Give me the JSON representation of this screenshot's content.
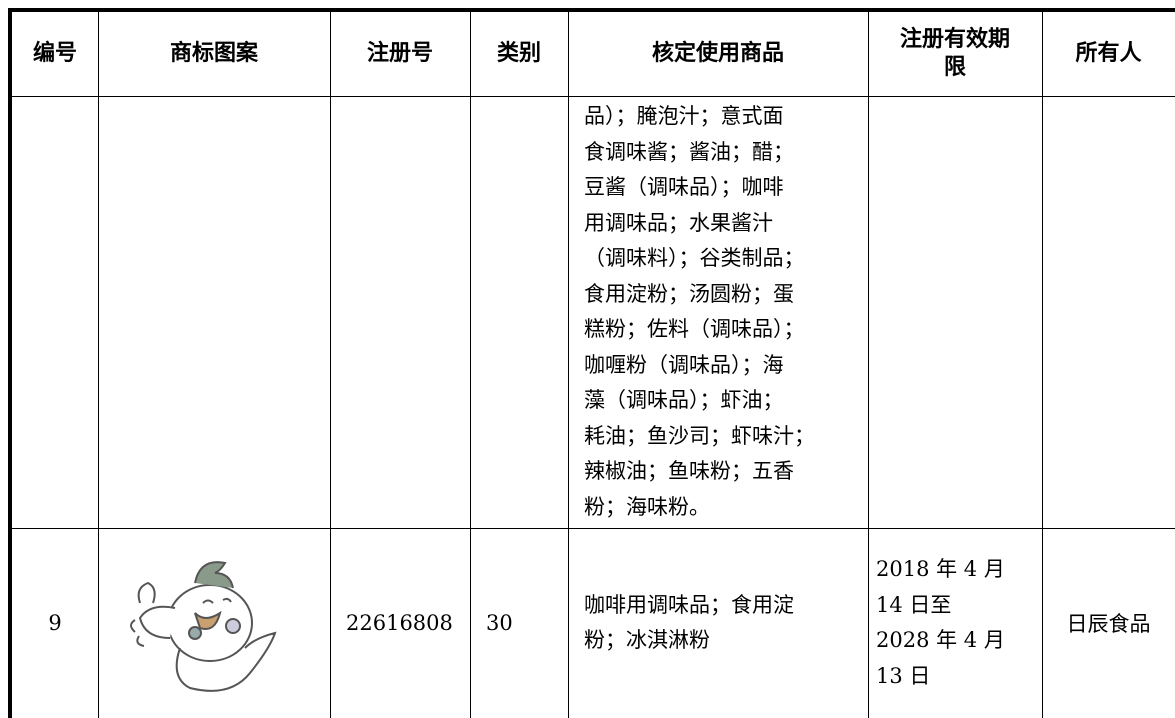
{
  "table": {
    "header": [
      "编号",
      "商标图案",
      "注册号",
      "类别",
      "核定使用商品",
      "注册有效期限",
      "所有人"
    ],
    "rows": [
      {
        "number": null,
        "registration_no": null,
        "class": null,
        "goods_lines": [
          "品）；腌泡汁；意式面",
          "食调味酱；酱油；醋；",
          "豆酱（调味品）；咖啡",
          "用调味品；水果酱汁",
          "（调味料）；谷类制品；",
          "食用淀粉；汤圆粉；蛋",
          "糕粉；佐料（调味品）；",
          "咖喱粉（调味品）；海",
          "藻（调味品）；虾油；",
          "耗油；鱼沙司；虾味汁；",
          "辣椒油；鱼味粉；五香",
          "粉；海味粉。"
        ],
        "validity_lines": [],
        "owner": null
      },
      {
        "number": "9",
        "registration_no": "22616808",
        "class": "30",
        "goods_lines": [
          "咖啡用调味品；食用淀",
          "粉；冰淇淋粉"
        ],
        "validity_lines": [
          "2018 年 4 月",
          "14 日至",
          "2028 年 4 月",
          "13 日"
        ],
        "owner": "日辰食品"
      }
    ]
  }
}
